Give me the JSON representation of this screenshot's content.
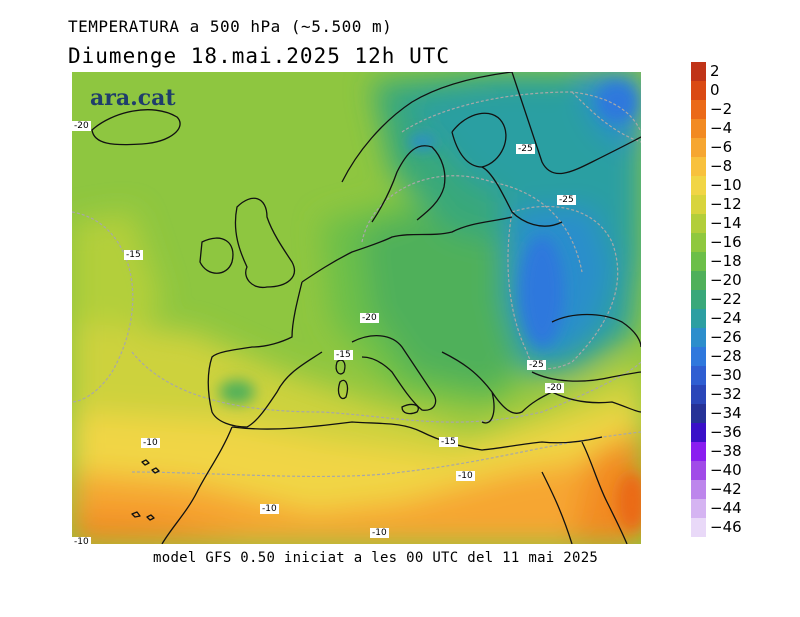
{
  "header": {
    "title": "TEMPERATURA a 500 hPa (~5.500 m)",
    "date": "Diumenge  18.mai.2025  12h  UTC"
  },
  "footer": "model GFS 0.50 iniciat a les 00 UTC del 11 mai 2025",
  "logo": "ara.cat",
  "contour_labels": [
    "-20",
    "-25",
    "-25",
    "-15",
    "-20",
    "-15",
    "-25",
    "-20",
    "-10",
    "-15",
    "-10",
    "-10",
    "-10",
    "-10"
  ],
  "legend": {
    "colors": [
      "#c03418",
      "#da4a14",
      "#eb6a18",
      "#f28a22",
      "#f6a631",
      "#f8c13d",
      "#f1d545",
      "#d8d43c",
      "#b2ce3a",
      "#8fc83e",
      "#6cbf48",
      "#4fb05a",
      "#39a87a",
      "#2c9fa2",
      "#2c8ecc",
      "#2f78dd",
      "#2f5ed2",
      "#2a46b9",
      "#263297",
      "#3a10c8",
      "#8a1ef0",
      "#a14be8",
      "#bd86ec",
      "#d5b4f2",
      "#e9d9f8"
    ],
    "labels": [
      "2",
      "0",
      "−2",
      "−4",
      "−6",
      "−8",
      "−10",
      "−12",
      "−14",
      "−16",
      "−18",
      "−20",
      "−22",
      "−24",
      "−26",
      "−28",
      "−30",
      "−32",
      "−34",
      "−36",
      "−38",
      "−40",
      "−42",
      "−44",
      "−46"
    ]
  }
}
